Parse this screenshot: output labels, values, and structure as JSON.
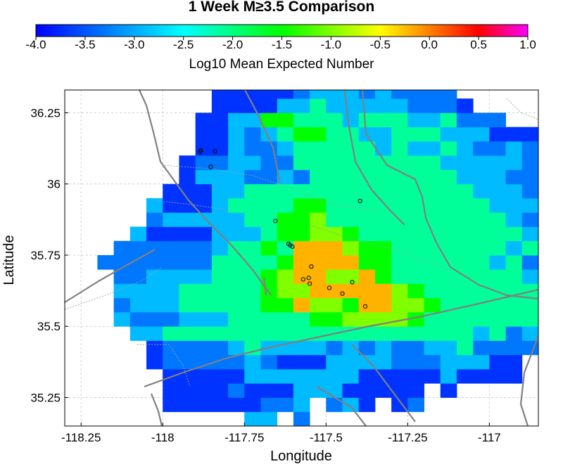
{
  "chart_data": {
    "type": "heatmap",
    "title": "1 Week M≥3.5 Comparison",
    "xlabel": "Longitude",
    "ylabel": "Latitude",
    "xlim": [
      -118.3,
      -116.85
    ],
    "ylim": [
      35.15,
      36.33
    ],
    "xticks": [
      -118.25,
      -118,
      -117.75,
      -117.5,
      -117.25,
      -117
    ],
    "xtick_labels": [
      "-118.25",
      "-118",
      "-117.75",
      "-117.5",
      "-117.25",
      "-117"
    ],
    "yticks": [
      35.25,
      35.5,
      35.75,
      36,
      36.25
    ],
    "ytick_labels": [
      "35.25",
      "35.5",
      "35.75",
      "36",
      "36.25"
    ],
    "grid": true,
    "colorbar": {
      "label": "Log10 Mean Expected Number",
      "min": -4.0,
      "max": 1.0,
      "ticks": [
        -4.0,
        -3.5,
        -3.0,
        -2.5,
        -2.0,
        -1.5,
        -1.0,
        -0.5,
        0.0,
        0.5,
        1.0
      ],
      "tick_labels": [
        "-4.0",
        "-3.5",
        "-3.0",
        "-2.5",
        "-2.0",
        "-1.5",
        "-1.0",
        "-0.5",
        "0.0",
        "0.5",
        "1.0"
      ],
      "colormap": "jet-magenta"
    },
    "grid_cells": {
      "lon0": -118.25,
      "lat0": 35.15,
      "dlon": 0.05,
      "dlat": 0.05,
      "rows_bottom_to_top": [
        "..........cc.b.....",
        ".....uuuuuubbc.bcu.ub",
        ".....uuuubuuucccuuuuu.u",
        ".....uuuuucccccccuuuuucuuuu",
        "....ubbbbbcbuuuccccbbbcccuu.uu",
        "....ubbbbcgccccbcbcbbccgbbbbbb..",
        "...ccgggggggggggggggggggcgbcbcbbcbb",
        "..cbbbcccgggggyyooooyggggggggcgbcbbbu",
        "..bcccgggggyyrooyrrooyggggggggcgbcbcbb",
        "..ccccgggggyoorrrrroyggggggggccbbbcu..",
        "..bbccccgggyorrooryggggggggccbcbbb.u..",
        ".bbbbbbbggggyrrrryyggggggcgbcbcbbbu...",
        "..bbbbbbcggygrrroyygggggggcgbcbbbbb...",
        "...cuuuucccgyyooyggggggggggccbcbbcb....",
        "....bcccccggyyogggggggggggcbbcbcbb.....",
        "....cuuucggggyyggggggggggcccbbbb.......",
        ".....uuuccggggggggggggggcccbbbb........",
        "......ucccbbcbgggggggggcccbbcb.........",
        "......ubbccbbgggggggggcccccb...........",
        ".......uucbbcgggggcgccgcbbcb...........",
        ".......uucbcgyyggccgggcccuuu...........",
        ".......uuccyygggcgggccgbbb.............",
        "........uuuuccgcccccbbbu...............",
        "........uuuuubcccbcbbbb................",
        "..........uuuubcbccbbbbu...............",
        "...........ucbcbbccbubbu...............",
        "..........cccbbcbbccbbu...............",
        ".........cuuuubcbbb..................",
        "................uu..................."
      ],
      "value_codes": {
        "u": -3.7,
        "b": -3.3,
        "c": -2.9,
        "g": -2.1,
        "y": -1.5,
        "o": -1.0,
        "r": -0.2
      }
    },
    "events": [
      {
        "lon": -117.886,
        "lat": 36.113
      },
      {
        "lon": -117.883,
        "lat": 36.118
      },
      {
        "lon": -117.84,
        "lat": 36.115
      },
      {
        "lon": -117.853,
        "lat": 36.06
      },
      {
        "lon": -117.655,
        "lat": 35.87
      },
      {
        "lon": -117.615,
        "lat": 35.79
      },
      {
        "lon": -117.603,
        "lat": 35.78
      },
      {
        "lon": -117.61,
        "lat": 35.785
      },
      {
        "lon": -117.57,
        "lat": 35.665
      },
      {
        "lon": -117.553,
        "lat": 35.67
      },
      {
        "lon": -117.545,
        "lat": 35.71
      },
      {
        "lon": -117.55,
        "lat": 35.65
      },
      {
        "lon": -117.49,
        "lat": 35.635
      },
      {
        "lon": -117.45,
        "lat": 35.615
      },
      {
        "lon": -117.42,
        "lat": 35.655
      },
      {
        "lon": -117.38,
        "lat": 35.57
      },
      {
        "lon": -117.396,
        "lat": 35.94
      }
    ]
  }
}
